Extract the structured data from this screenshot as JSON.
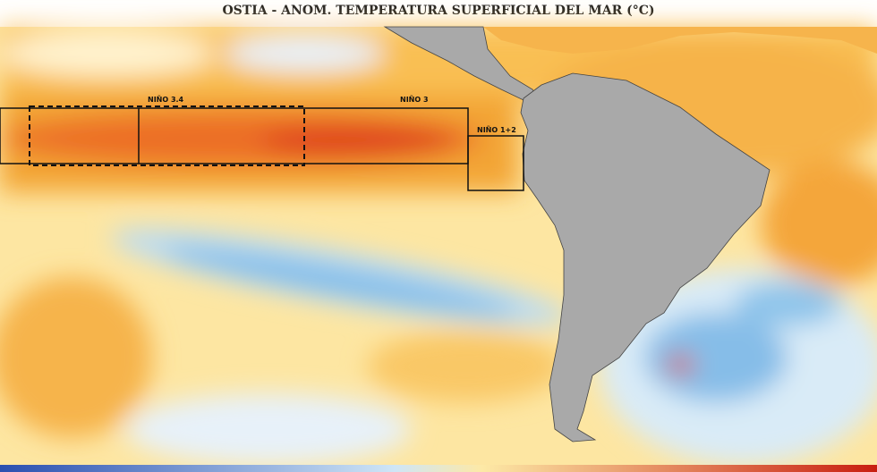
{
  "title": "OSTIA - ANOM. TEMPERATURA SUPERFICIAL DEL MAR (°C)",
  "regions": [
    {
      "label": "NIÑO 3.4"
    },
    {
      "label": "NIÑO 3"
    },
    {
      "label": "NIÑO 1+2"
    }
  ]
}
